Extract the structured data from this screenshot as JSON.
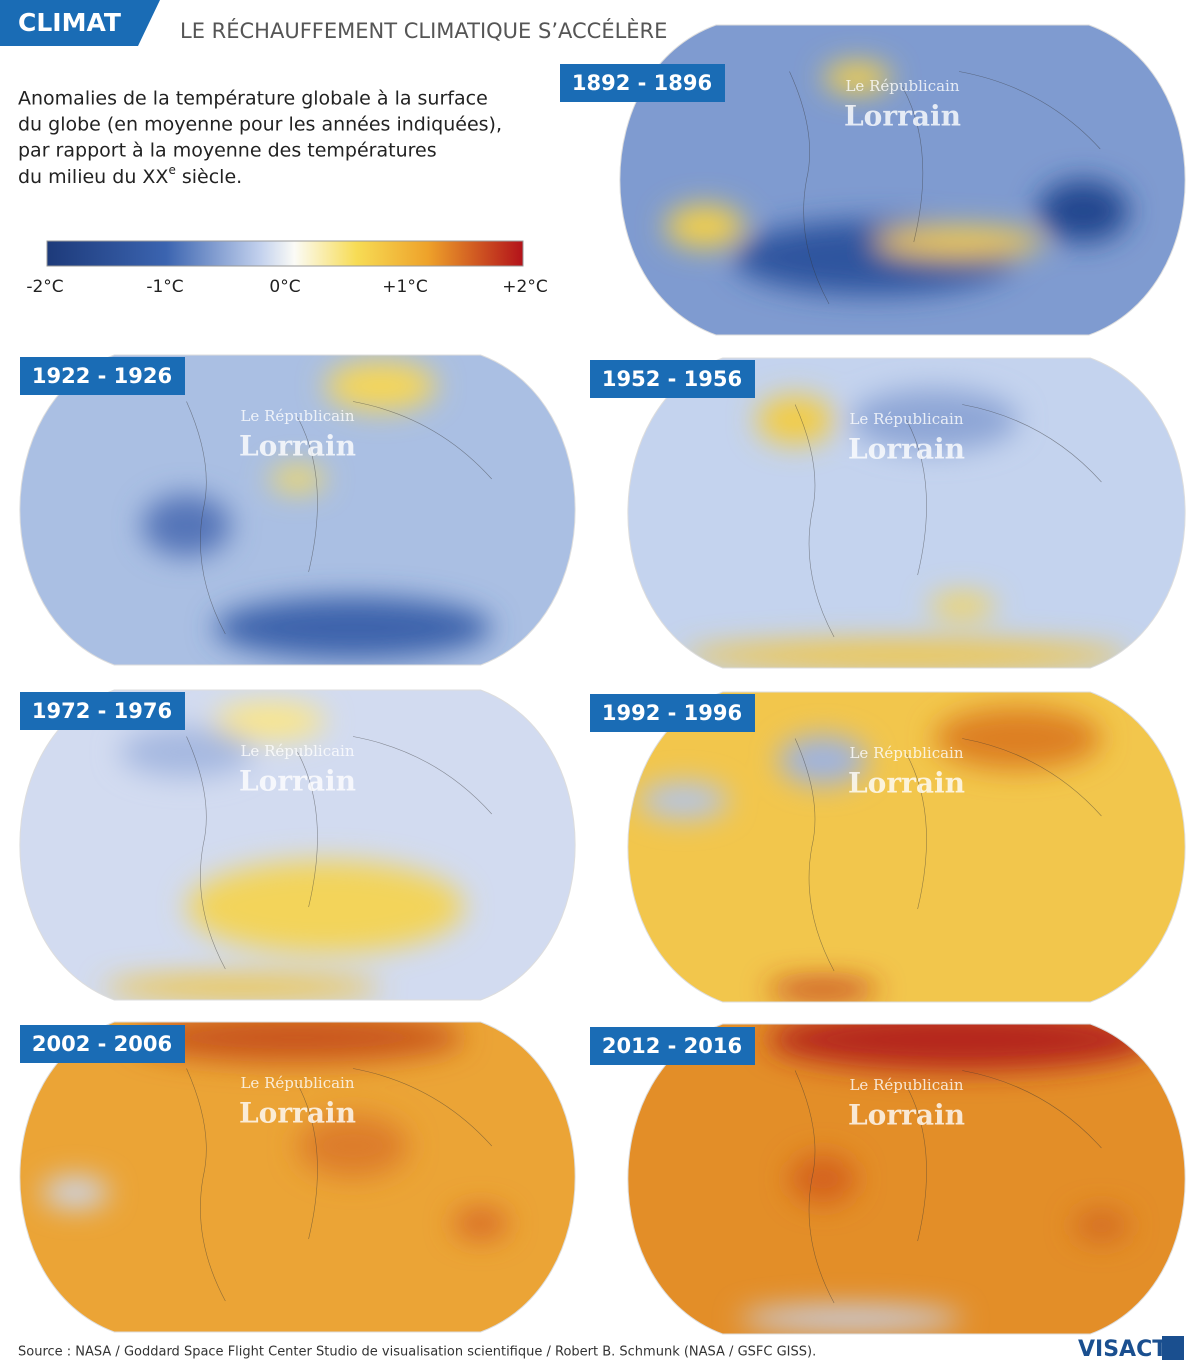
{
  "header": {
    "tag": "CLIMAT",
    "title": "LE RÉCHAUFFEMENT CLIMATIQUE S’ACCÉLÈRE"
  },
  "description": {
    "lines": [
      "Anomalies de la température globale à la surface",
      "du globe (en moyenne pour les années indiquées),",
      "par rapport à la moyenne des températures"
    ],
    "last": {
      "before": "du milieu du XX",
      "sup": "e",
      "after": " siècle."
    }
  },
  "legend": {
    "ticks": [
      "-2°C",
      "-1°C",
      "0°C",
      "+1°C",
      "+2°C"
    ]
  },
  "maps": [
    {
      "label": "1892 - 1896"
    },
    {
      "label": "1922 - 1926"
    },
    {
      "label": "1952 - 1956"
    },
    {
      "label": "1972 - 1976"
    },
    {
      "label": "1992 - 1996"
    },
    {
      "label": "2002 - 2006"
    },
    {
      "label": "2012 - 2016"
    }
  ],
  "watermark": {
    "line1": "Le Républicain",
    "line2": "Lorrain"
  },
  "source": "Source : NASA / Goddard Space Flight Center Studio de visualisation scientifique /  Robert B. Schmunk (NASA / GSFC GISS).",
  "logo": "VISACTU"
}
